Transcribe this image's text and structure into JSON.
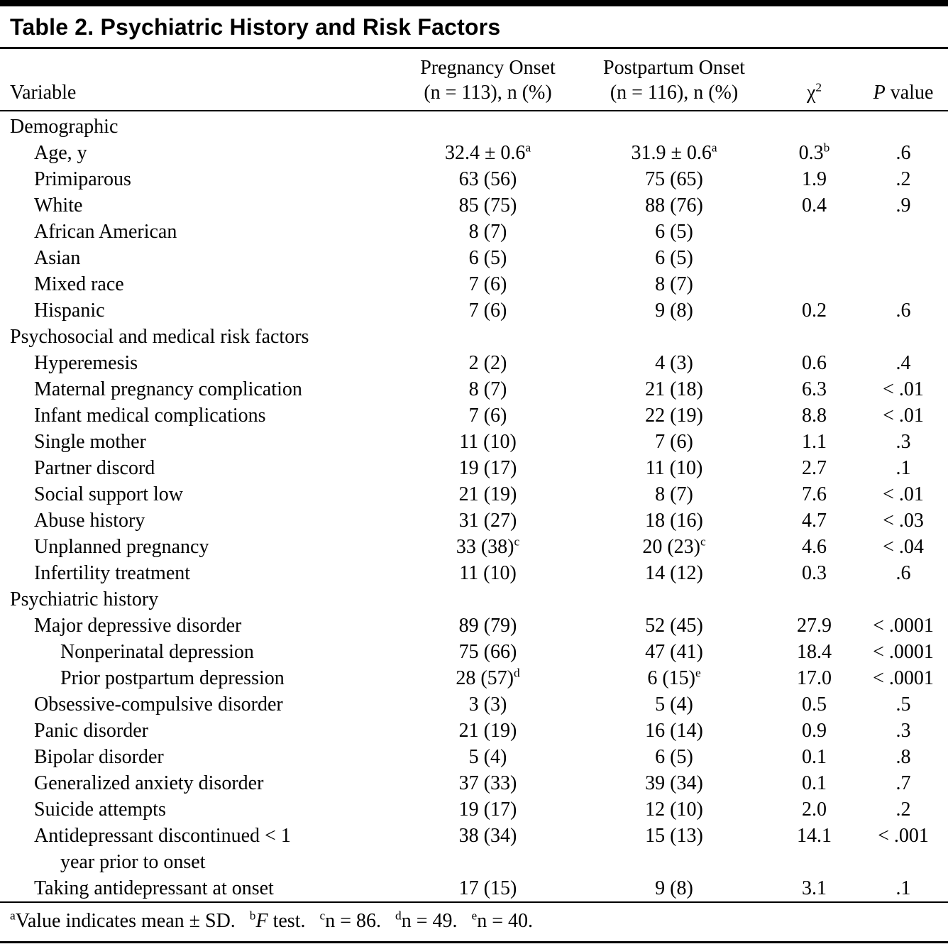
{
  "title": "Table 2. Psychiatric History and Risk Factors",
  "columns": {
    "variable": "Variable",
    "pregnancy_line1": "Pregnancy Onset",
    "pregnancy_line2": "(n = 113), n (%)",
    "postpartum_line1": "Postpartum Onset",
    "postpartum_line2": "(n = 116), n (%)",
    "chi_base": "χ",
    "chi_sup": "2",
    "p_italic": "P",
    "p_rest": " value"
  },
  "rows": [
    {
      "type": "section",
      "label": "Demographic"
    },
    {
      "type": "data",
      "indent": 1,
      "label": "Age, y",
      "preg": {
        "v": "32.4 ± 0.6",
        "sup": "a"
      },
      "post": {
        "v": "31.9 ± 0.6",
        "sup": "a"
      },
      "chi": {
        "v": "0.3",
        "sup": "b"
      },
      "p": ".6"
    },
    {
      "type": "data",
      "indent": 1,
      "label": "Primiparous",
      "preg": "63 (56)",
      "post": "75 (65)",
      "chi": "1.9",
      "p": ".2"
    },
    {
      "type": "data",
      "indent": 1,
      "label": "White",
      "preg": "85 (75)",
      "post": "88 (76)",
      "chi": "0.4",
      "p": ".9"
    },
    {
      "type": "data",
      "indent": 1,
      "label": "African American",
      "preg": "8 (7)",
      "post": "6 (5)",
      "chi": "",
      "p": ""
    },
    {
      "type": "data",
      "indent": 1,
      "label": "Asian",
      "preg": "6 (5)",
      "post": "6 (5)",
      "chi": "",
      "p": ""
    },
    {
      "type": "data",
      "indent": 1,
      "label": "Mixed race",
      "preg": "7 (6)",
      "post": "8 (7)",
      "chi": "",
      "p": ""
    },
    {
      "type": "data",
      "indent": 1,
      "label": "Hispanic",
      "preg": "7 (6)",
      "post": "9 (8)",
      "chi": "0.2",
      "p": ".6"
    },
    {
      "type": "section",
      "label": "Psychosocial and medical risk factors"
    },
    {
      "type": "data",
      "indent": 1,
      "label": "Hyperemesis",
      "preg": "2 (2)",
      "post": "4 (3)",
      "chi": "0.6",
      "p": ".4"
    },
    {
      "type": "data",
      "indent": 1,
      "label": "Maternal pregnancy complication",
      "preg": "8 (7)",
      "post": "21 (18)",
      "chi": "6.3",
      "p": "< .01"
    },
    {
      "type": "data",
      "indent": 1,
      "label": "Infant medical complications",
      "preg": "7 (6)",
      "post": "22 (19)",
      "chi": "8.8",
      "p": "< .01"
    },
    {
      "type": "data",
      "indent": 1,
      "label": "Single mother",
      "preg": "11 (10)",
      "post": "7 (6)",
      "chi": "1.1",
      "p": ".3"
    },
    {
      "type": "data",
      "indent": 1,
      "label": "Partner discord",
      "preg": "19 (17)",
      "post": "11 (10)",
      "chi": "2.7",
      "p": ".1"
    },
    {
      "type": "data",
      "indent": 1,
      "label": "Social support low",
      "preg": "21 (19)",
      "post": "8 (7)",
      "chi": "7.6",
      "p": "< .01"
    },
    {
      "type": "data",
      "indent": 1,
      "label": "Abuse history",
      "preg": "31 (27)",
      "post": "18 (16)",
      "chi": "4.7",
      "p": "< .03"
    },
    {
      "type": "data",
      "indent": 1,
      "label": "Unplanned pregnancy",
      "preg": {
        "v": "33 (38)",
        "sup": "c"
      },
      "post": {
        "v": "20 (23)",
        "sup": "c"
      },
      "chi": "4.6",
      "p": "< .04"
    },
    {
      "type": "data",
      "indent": 1,
      "label": "Infertility treatment",
      "preg": "11 (10)",
      "post": "14 (12)",
      "chi": "0.3",
      "p": ".6"
    },
    {
      "type": "section",
      "label": "Psychiatric history"
    },
    {
      "type": "data",
      "indent": 1,
      "label": "Major depressive disorder",
      "preg": "89 (79)",
      "post": "52 (45)",
      "chi": "27.9",
      "p": "< .0001"
    },
    {
      "type": "data",
      "indent": 2,
      "label": "Nonperinatal depression",
      "preg": "75 (66)",
      "post": "47 (41)",
      "chi": "18.4",
      "p": "< .0001"
    },
    {
      "type": "data",
      "indent": 2,
      "label": "Prior postpartum depression",
      "preg": {
        "v": "28 (57)",
        "sup": "d"
      },
      "post": {
        "v": "6 (15)",
        "sup": "e"
      },
      "chi": "17.0",
      "p": "< .0001"
    },
    {
      "type": "data",
      "indent": 1,
      "label": "Obsessive-compulsive disorder",
      "preg": "3 (3)",
      "post": "5 (4)",
      "chi": "0.5",
      "p": ".5"
    },
    {
      "type": "data",
      "indent": 1,
      "label": "Panic disorder",
      "preg": "21 (19)",
      "post": "16 (14)",
      "chi": "0.9",
      "p": ".3"
    },
    {
      "type": "data",
      "indent": 1,
      "label": "Bipolar disorder",
      "preg": "5 (4)",
      "post": "6 (5)",
      "chi": "0.1",
      "p": ".8"
    },
    {
      "type": "data",
      "indent": 1,
      "label": "Generalized anxiety disorder",
      "preg": "37 (33)",
      "post": "39 (34)",
      "chi": "0.1",
      "p": ".7"
    },
    {
      "type": "data",
      "indent": 1,
      "label": "Suicide attempts",
      "preg": "19 (17)",
      "post": "12 (10)",
      "chi": "2.0",
      "p": ".2"
    },
    {
      "type": "data",
      "indent": 1,
      "label": "Antidepressant discontinued < 1",
      "label2": "year prior to onset",
      "preg": "38 (34)",
      "post": "15 (13)",
      "chi": "14.1",
      "p": "< .001"
    },
    {
      "type": "data",
      "indent": 1,
      "label": "Taking antidepressant at onset",
      "preg": "17 (15)",
      "post": "9 (8)",
      "chi": "3.1",
      "p": ".1"
    }
  ],
  "footnote": {
    "items": [
      {
        "sup": "a",
        "text": "Value indicates mean ± SD."
      },
      {
        "sup": "b",
        "italic": "F",
        "text": " test."
      },
      {
        "sup": "c",
        "text": "n = 86."
      },
      {
        "sup": "d",
        "text": "n = 49."
      },
      {
        "sup": "e",
        "text": "n = 40."
      }
    ]
  }
}
